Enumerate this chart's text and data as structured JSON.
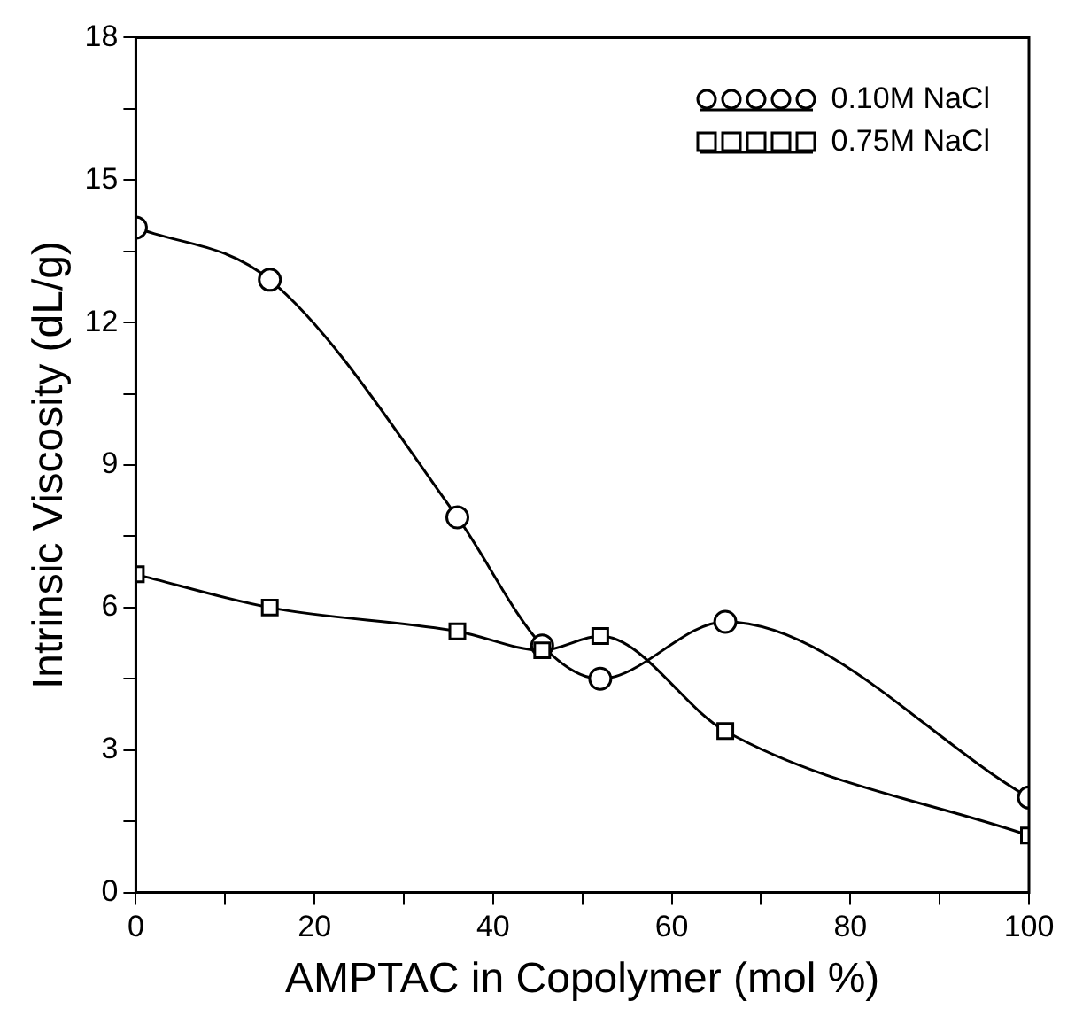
{
  "chart_data": {
    "type": "line",
    "xlabel": "AMPTAC in Copolymer (mol %)",
    "ylabel": "Intrinsic Viscosity (dL/g)",
    "xlim": [
      0,
      100
    ],
    "xticks": [
      0,
      {
        "value": 10,
        "label": null
      },
      20,
      {
        "value": 30,
        "label": null
      },
      40,
      {
        "value": 50,
        "label": null
      },
      60,
      {
        "value": 70,
        "label": null
      },
      80,
      {
        "value": 90,
        "label": null
      },
      100
    ],
    "ylim": [
      0,
      18
    ],
    "yticks": [
      0,
      {
        "value": 1.5,
        "label": null
      },
      3,
      {
        "value": 4.5,
        "label": null
      },
      6,
      {
        "value": 7.5,
        "label": null
      },
      9,
      {
        "value": 10.5,
        "label": null
      },
      12,
      {
        "value": 13.5,
        "label": null
      },
      15,
      {
        "value": 16.5,
        "label": null
      },
      18
    ],
    "legend": "top right",
    "line_style": "solid",
    "series": [
      {
        "name": "0.10M NaCl",
        "color": "#000000",
        "marker": "circle",
        "x": [
          0,
          15,
          36,
          45.5,
          52,
          66,
          100
        ],
        "values": [
          14,
          12.9,
          7.9,
          5.2,
          4.5,
          5.7,
          2.0
        ]
      },
      {
        "name": "0.75M NaCl",
        "color": "#000000",
        "marker": "square",
        "x": [
          0,
          15,
          36,
          45.5,
          52,
          66,
          100
        ],
        "values": [
          6.7,
          6.0,
          5.5,
          5.1,
          5.4,
          3.4,
          1.2
        ]
      }
    ]
  }
}
